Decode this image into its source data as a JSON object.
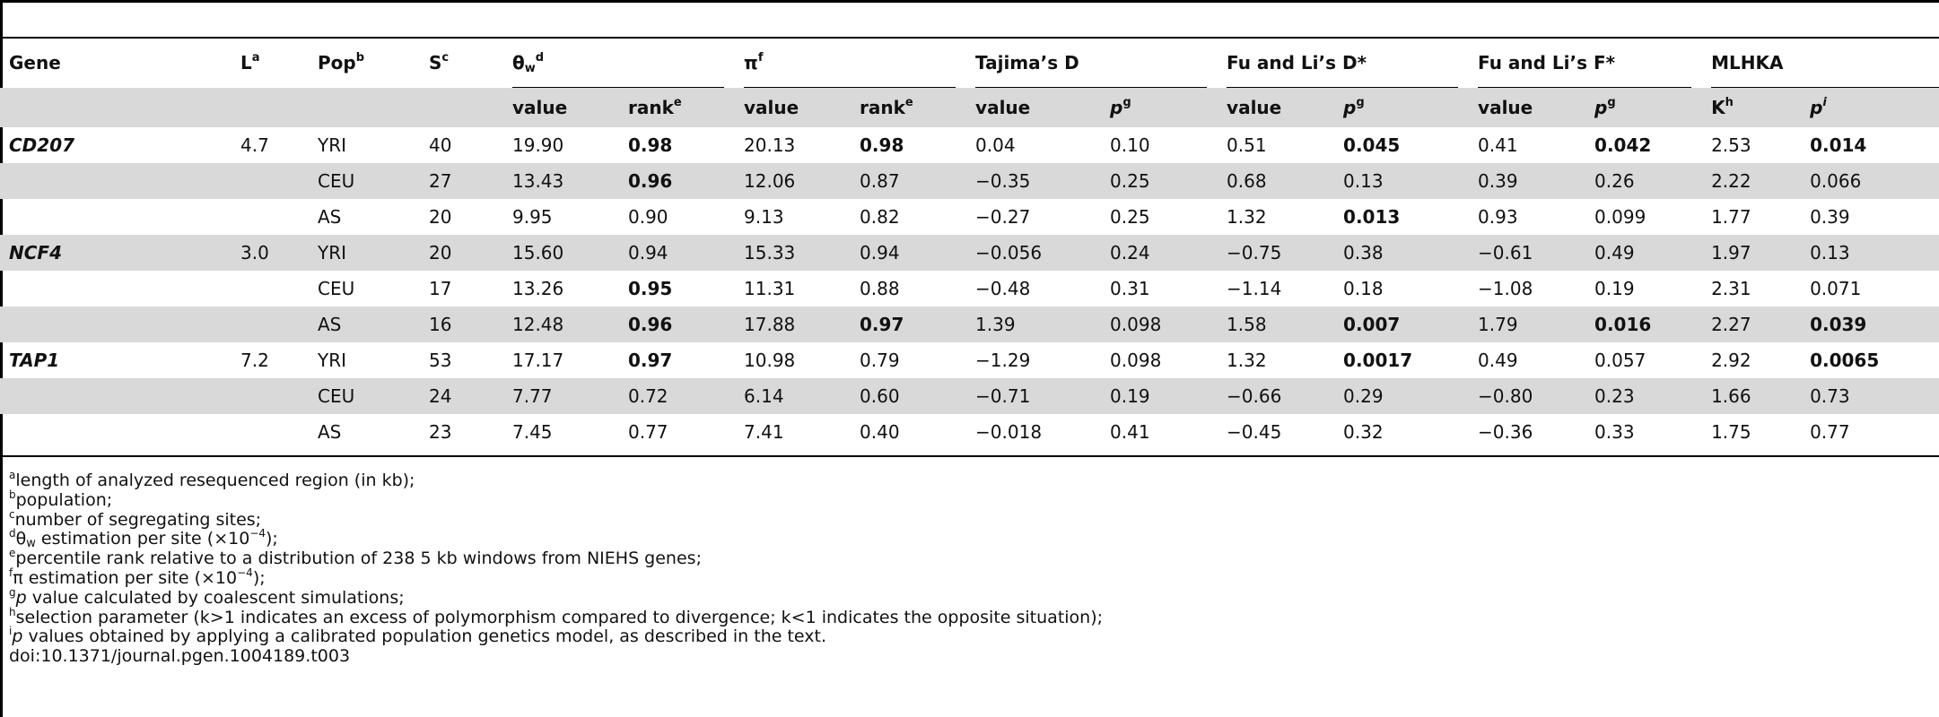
{
  "columns": {
    "gene": "Gene",
    "l": "L",
    "l_sup": "a",
    "pop": "Pop",
    "pop_sup": "b",
    "s": "S",
    "s_sup": "c",
    "theta": "θ",
    "theta_sub": "w",
    "theta_sup": "d",
    "pi": "π",
    "pi_sup": "f",
    "tajima": "Tajima’s D",
    "fuli_d": "Fu and Li’s D*",
    "fuli_f": "Fu and Li’s F*",
    "mlhka": "MLHKA",
    "value": "value",
    "rank": "rank",
    "rank_sup": "e",
    "p": "p",
    "p_sup": "g",
    "k": "K",
    "k_sup": "h",
    "pi_sup_i": "i"
  },
  "rows": [
    {
      "gene": "CD207",
      "l": "4.7",
      "pop": "YRI",
      "s": "40",
      "theta_v": "19.90",
      "theta_r": "0.98",
      "pi_v": "20.13",
      "pi_r": "0.98",
      "taj_v": "0.04",
      "taj_p": "0.10",
      "fd_v": "0.51",
      "fd_p": "0.045",
      "ff_v": "0.41",
      "ff_p": "0.042",
      "k": "2.53",
      "mp": "0.014"
    },
    {
      "gene": "",
      "l": "",
      "pop": "CEU",
      "s": "27",
      "theta_v": "13.43",
      "theta_r": "0.96",
      "pi_v": "12.06",
      "pi_r": "0.87",
      "taj_v": "−0.35",
      "taj_p": "0.25",
      "fd_v": "0.68",
      "fd_p": "0.13",
      "ff_v": "0.39",
      "ff_p": "0.26",
      "k": "2.22",
      "mp": "0.066"
    },
    {
      "gene": "",
      "l": "",
      "pop": "AS",
      "s": "20",
      "theta_v": "9.95",
      "theta_r": "0.90",
      "pi_v": "9.13",
      "pi_r": "0.82",
      "taj_v": "−0.27",
      "taj_p": "0.25",
      "fd_v": "1.32",
      "fd_p": "0.013",
      "ff_v": "0.93",
      "ff_p": "0.099",
      "k": "1.77",
      "mp": "0.39"
    },
    {
      "gene": "NCF4",
      "l": "3.0",
      "pop": "YRI",
      "s": "20",
      "theta_v": "15.60",
      "theta_r": "0.94",
      "pi_v": "15.33",
      "pi_r": "0.94",
      "taj_v": "−0.056",
      "taj_p": "0.24",
      "fd_v": "−0.75",
      "fd_p": "0.38",
      "ff_v": "−0.61",
      "ff_p": "0.49",
      "k": "1.97",
      "mp": "0.13"
    },
    {
      "gene": "",
      "l": "",
      "pop": "CEU",
      "s": "17",
      "theta_v": "13.26",
      "theta_r": "0.95",
      "pi_v": "11.31",
      "pi_r": "0.88",
      "taj_v": "−0.48",
      "taj_p": "0.31",
      "fd_v": "−1.14",
      "fd_p": "0.18",
      "ff_v": "−1.08",
      "ff_p": "0.19",
      "k": "2.31",
      "mp": "0.071"
    },
    {
      "gene": "",
      "l": "",
      "pop": "AS",
      "s": "16",
      "theta_v": "12.48",
      "theta_r": "0.96",
      "pi_v": "17.88",
      "pi_r": "0.97",
      "taj_v": "1.39",
      "taj_p": "0.098",
      "fd_v": "1.58",
      "fd_p": "0.007",
      "ff_v": "1.79",
      "ff_p": "0.016",
      "k": "2.27",
      "mp": "0.039"
    },
    {
      "gene": "TAP1",
      "l": "7.2",
      "pop": "YRI",
      "s": "53",
      "theta_v": "17.17",
      "theta_r": "0.97",
      "pi_v": "10.98",
      "pi_r": "0.79",
      "taj_v": "−1.29",
      "taj_p": "0.098",
      "fd_v": "1.32",
      "fd_p": "0.0017",
      "ff_v": "0.49",
      "ff_p": "0.057",
      "k": "2.92",
      "mp": "0.0065"
    },
    {
      "gene": "",
      "l": "",
      "pop": "CEU",
      "s": "24",
      "theta_v": "7.77",
      "theta_r": "0.72",
      "pi_v": "6.14",
      "pi_r": "0.60",
      "taj_v": "−0.71",
      "taj_p": "0.19",
      "fd_v": "−0.66",
      "fd_p": "0.29",
      "ff_v": "−0.80",
      "ff_p": "0.23",
      "k": "1.66",
      "mp": "0.73"
    },
    {
      "gene": "",
      "l": "",
      "pop": "AS",
      "s": "23",
      "theta_v": "7.45",
      "theta_r": "0.77",
      "pi_v": "7.41",
      "pi_r": "0.40",
      "taj_v": "−0.018",
      "taj_p": "0.41",
      "fd_v": "−0.45",
      "fd_p": "0.32",
      "ff_v": "−0.36",
      "ff_p": "0.33",
      "k": "1.75",
      "mp": "0.77"
    }
  ],
  "footnotes": {
    "a_mark": "a",
    "a": "length of analyzed resequenced region (in kb);",
    "b_mark": "b",
    "b": "population;",
    "c_mark": "c",
    "c": "number of segregating sites;",
    "d_mark": "d",
    "d_sym": "θ",
    "d_sub": "w",
    "d": " estimation per site (×10",
    "d_exp": "−4",
    "d_end": ");",
    "e_mark": "e",
    "e": "percentile rank relative to a distribution of 238 5 kb windows from NIEHS genes;",
    "f_mark": "f",
    "f_sym": "π",
    "f": " estimation per site (×10",
    "f_exp": "−4",
    "f_end": ");",
    "g_mark": "g",
    "g_p": "p",
    "g": " value calculated by coalescent simulations;",
    "h_mark": "h",
    "h": "selection parameter (k>1 indicates an excess of polymorphism compared to divergence; k<1 indicates the opposite situation);",
    "i_mark": "i",
    "i_p": "p",
    "i": " values obtained by applying a calibrated population genetics model, as described in the text.",
    "doi": "doi:10.1371/journal.pgen.1004189.t003"
  }
}
